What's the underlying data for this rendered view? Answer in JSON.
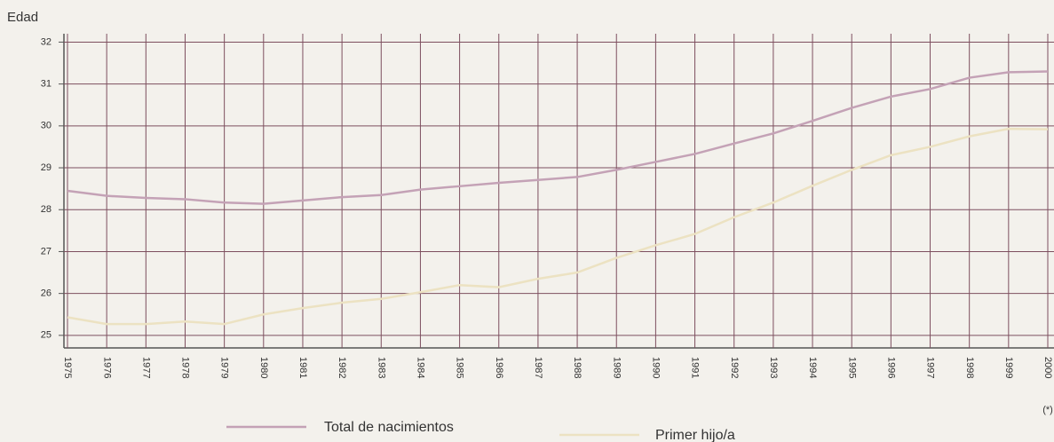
{
  "chart_data": {
    "type": "line",
    "y_label": "Edad",
    "note": "(*)",
    "categories": [
      "1975",
      "1976",
      "1977",
      "1978",
      "1979",
      "1980",
      "1981",
      "1982",
      "1983",
      "1984",
      "1985",
      "1986",
      "1987",
      "1988",
      "1989",
      "1990",
      "1991",
      "1992",
      "1993",
      "1994",
      "1995",
      "1996",
      "1997",
      "1998",
      "1999",
      "2000"
    ],
    "series": [
      {
        "name": "Total de nacimientos",
        "color": "#c4a2b6",
        "values": [
          28.45,
          28.33,
          28.28,
          28.25,
          28.17,
          28.14,
          28.22,
          28.3,
          28.35,
          28.48,
          28.56,
          28.64,
          28.71,
          28.78,
          28.95,
          29.14,
          29.33,
          29.58,
          29.82,
          30.12,
          30.43,
          30.7,
          30.88,
          31.15,
          31.28,
          31.3
        ]
      },
      {
        "name": "Primer hijo/a",
        "color": "#ece2c2",
        "values": [
          25.43,
          25.27,
          25.27,
          25.33,
          25.27,
          25.5,
          25.65,
          25.78,
          25.87,
          26.03,
          26.2,
          26.15,
          26.35,
          26.5,
          26.85,
          27.15,
          27.42,
          27.82,
          28.17,
          28.57,
          28.95,
          29.3,
          29.5,
          29.75,
          29.93,
          29.92
        ]
      }
    ],
    "ylim": [
      24.7,
      32.2
    ],
    "yticks": [
      25,
      26,
      27,
      28,
      29,
      30,
      31,
      32
    ],
    "grid": true
  }
}
